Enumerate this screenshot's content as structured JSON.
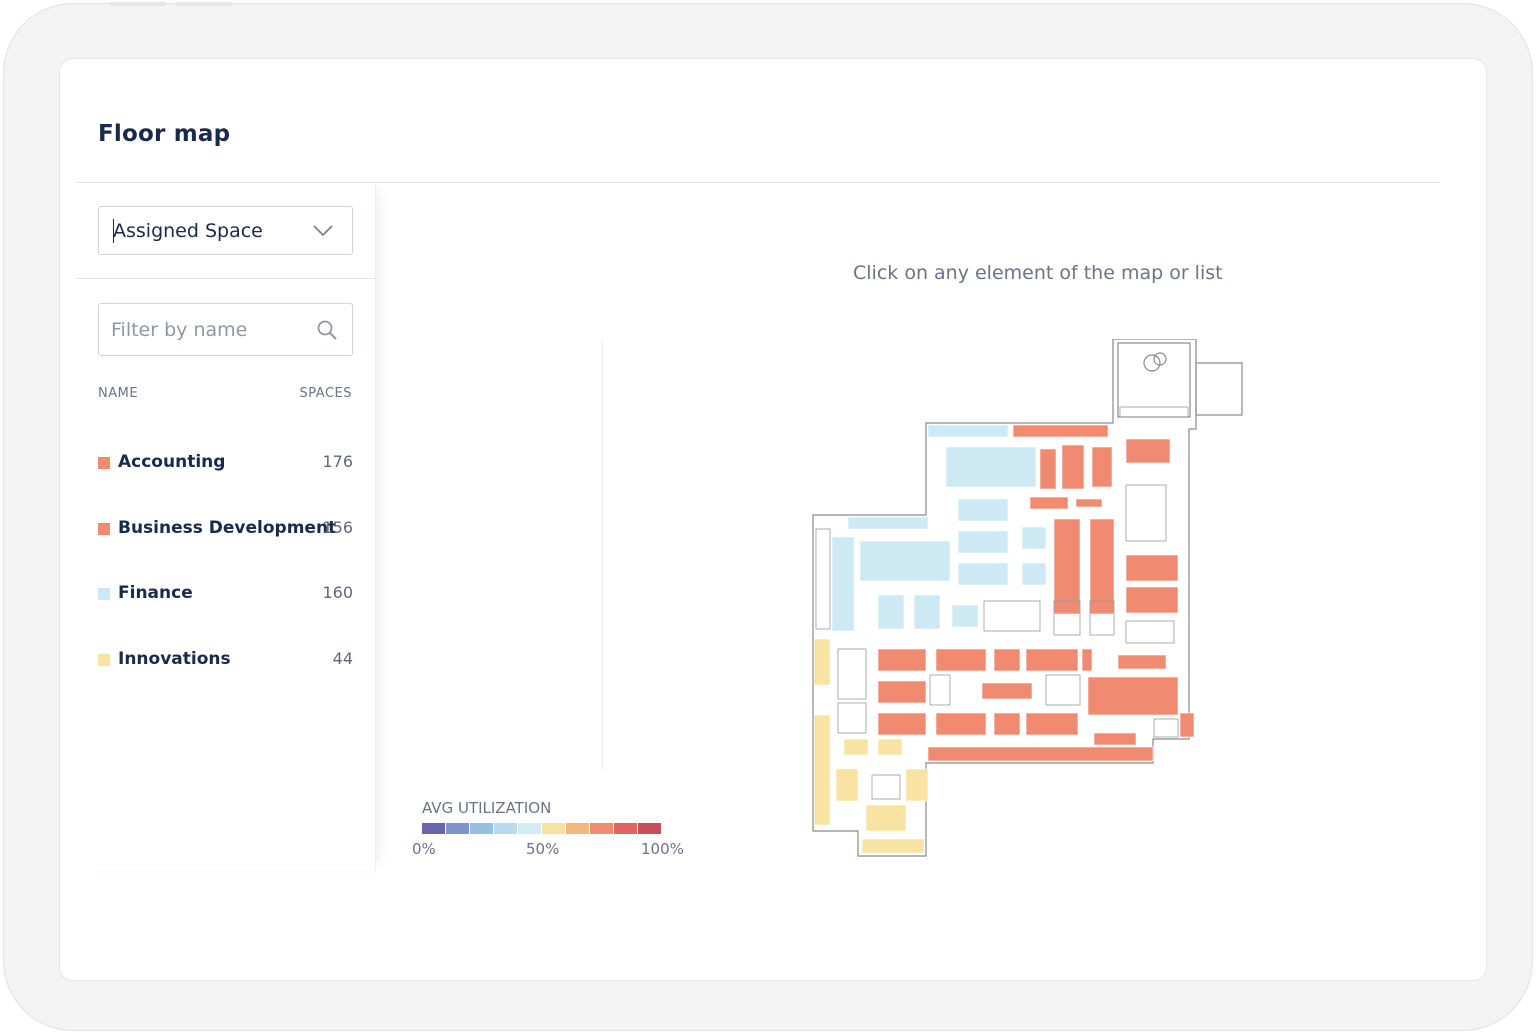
{
  "page": {
    "title": "Floor map",
    "hint": "Click on any element of the map or list"
  },
  "view_select": {
    "value": "Assigned Space",
    "icon": "chevron-down-icon"
  },
  "filter": {
    "placeholder": "Filter by name",
    "icon": "search-icon"
  },
  "list": {
    "columns": {
      "name": "NAME",
      "spaces": "SPACES"
    },
    "rows": [
      {
        "name": "Accounting",
        "spaces": "176",
        "color": "#f08a70"
      },
      {
        "name": "Business Development",
        "spaces": "156",
        "color": "#f08a70"
      },
      {
        "name": "Finance",
        "spaces": "160",
        "color": "#cde9f3"
      },
      {
        "name": "Innovations",
        "spaces": "44",
        "color": "#f9e3a3"
      }
    ]
  },
  "legend": {
    "title": "AVG UTILIZATION",
    "scale_colors": [
      "#6a63ae",
      "#7f94cb",
      "#97bfe0",
      "#b8dcee",
      "#d3ebf2",
      "#f7e2a3",
      "#f2b97c",
      "#f08a70",
      "#e06464",
      "#c84f5a"
    ],
    "ticks": [
      "0%",
      "50%",
      "100%"
    ]
  },
  "colors": {
    "accent_text": "#1a2a4a",
    "assigned_orange": "#f08a70",
    "assigned_blue": "#cde9f3",
    "assigned_yellow": "#f9e3a3"
  }
}
